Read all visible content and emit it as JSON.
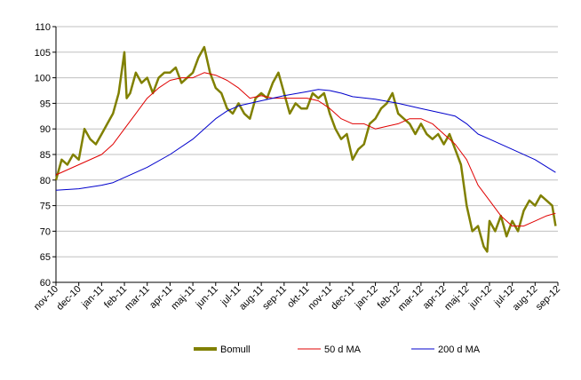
{
  "chart_data": {
    "type": "line",
    "xlim": [
      0,
      22
    ],
    "xticks": [
      {
        "value": 0,
        "label": "nov-10"
      },
      {
        "value": 1,
        "label": "dec-10"
      },
      {
        "value": 2,
        "label": "jan-11"
      },
      {
        "value": 3,
        "label": "feb-11"
      },
      {
        "value": 4,
        "label": "mar-11"
      },
      {
        "value": 5,
        "label": "apr-11"
      },
      {
        "value": 6,
        "label": "maj-11"
      },
      {
        "value": 7,
        "label": "jun-11"
      },
      {
        "value": 8,
        "label": "jul-11"
      },
      {
        "value": 9,
        "label": "aug-11"
      },
      {
        "value": 10,
        "label": "sep-11"
      },
      {
        "value": 11,
        "label": "okt-11"
      },
      {
        "value": 12,
        "label": "nov-11"
      },
      {
        "value": 13,
        "label": "dec-11"
      },
      {
        "value": 14,
        "label": "jan-12"
      },
      {
        "value": 15,
        "label": "feb-12"
      },
      {
        "value": 16,
        "label": "mar-12"
      },
      {
        "value": 17,
        "label": "apr-12"
      },
      {
        "value": 18,
        "label": "maj-12"
      },
      {
        "value": 19,
        "label": "jun-12"
      },
      {
        "value": 20,
        "label": "jul-12"
      },
      {
        "value": 21,
        "label": "aug-12"
      },
      {
        "value": 22,
        "label": "sep-12"
      }
    ],
    "ylim": [
      60,
      110
    ],
    "yticks": [
      60,
      65,
      70,
      75,
      80,
      85,
      90,
      95,
      100,
      105,
      110
    ],
    "grid": true,
    "legend": "bottom",
    "series": [
      {
        "name": "Bomull",
        "color": "#808000",
        "x": [
          0,
          0.25,
          0.5,
          0.75,
          1,
          1.25,
          1.5,
          1.75,
          2,
          2.25,
          2.5,
          2.75,
          3,
          3.1,
          3.25,
          3.5,
          3.75,
          4,
          4.25,
          4.5,
          4.75,
          5,
          5.25,
          5.5,
          5.75,
          6,
          6.25,
          6.5,
          6.75,
          7,
          7.25,
          7.5,
          7.75,
          8,
          8.25,
          8.5,
          8.75,
          9,
          9.25,
          9.5,
          9.75,
          10,
          10.25,
          10.5,
          10.75,
          11,
          11.25,
          11.5,
          11.75,
          12,
          12.25,
          12.5,
          12.75,
          13,
          13.25,
          13.5,
          13.75,
          14,
          14.25,
          14.5,
          14.75,
          15,
          15.25,
          15.5,
          15.75,
          16,
          16.25,
          16.5,
          16.75,
          17,
          17.25,
          17.5,
          17.75,
          18,
          18.25,
          18.5,
          18.75,
          18.9,
          19,
          19.25,
          19.5,
          19.75,
          20,
          20.25,
          20.5,
          20.75,
          21,
          21.25,
          21.5,
          21.75,
          21.9
        ],
        "values": [
          80,
          84,
          83,
          85,
          84,
          90,
          88,
          87,
          89,
          91,
          93,
          97,
          105,
          96,
          97,
          101,
          99,
          100,
          97,
          100,
          101,
          101,
          102,
          99,
          100,
          101,
          104,
          106,
          101,
          98,
          97,
          94,
          93,
          95,
          93,
          92,
          96,
          97,
          96,
          99,
          101,
          97,
          93,
          95,
          94,
          94,
          97,
          96,
          97,
          93,
          90,
          88,
          89,
          84,
          86,
          87,
          91,
          92,
          94,
          95,
          97,
          93,
          92,
          91,
          89,
          91,
          89,
          88,
          89,
          87,
          89,
          86,
          83,
          75,
          70,
          71,
          67,
          66,
          72,
          70,
          73,
          69,
          72,
          70,
          74,
          76,
          75,
          77,
          76,
          75,
          71
        ]
      },
      {
        "name": "50 d MA",
        "color": "#e00000",
        "x": [
          0,
          1,
          2,
          2.5,
          3,
          3.5,
          4,
          4.5,
          5,
          5.5,
          6,
          6.5,
          7,
          7.5,
          8,
          8.5,
          9,
          9.5,
          10,
          10.5,
          11,
          11.5,
          12,
          12.5,
          13,
          13.5,
          14,
          14.5,
          15,
          15.5,
          16,
          16.5,
          17,
          17.5,
          18,
          18.5,
          19,
          19.5,
          20,
          20.5,
          21,
          21.5,
          21.9
        ],
        "values": [
          81,
          83,
          85,
          87,
          90,
          93,
          96,
          98,
          99.5,
          100,
          100,
          101,
          100.5,
          99.5,
          98,
          96,
          96.5,
          96,
          96,
          96,
          96,
          95.5,
          94,
          92,
          91,
          91,
          90,
          90.5,
          91,
          92,
          92,
          91,
          89,
          87,
          84,
          79,
          76,
          73,
          71,
          71,
          72,
          73,
          73.5
        ]
      },
      {
        "name": "200 d MA",
        "color": "#0000cc",
        "x": [
          0,
          1,
          2,
          2.5,
          3,
          4,
          5,
          6,
          6.5,
          7,
          7.5,
          8,
          9,
          10,
          11,
          11.5,
          12,
          12.5,
          13,
          14,
          15,
          16,
          17,
          17.5,
          18,
          18.5,
          19,
          20,
          21,
          21.9
        ],
        "values": [
          78,
          78.3,
          79,
          79.5,
          80.5,
          82.5,
          85,
          88,
          90,
          92,
          93.5,
          94.5,
          95.5,
          96.5,
          97.3,
          97.7,
          97.5,
          97,
          96.3,
          95.8,
          95,
          94,
          93,
          92.5,
          91,
          89,
          88,
          86,
          84,
          81.5
        ]
      }
    ]
  }
}
